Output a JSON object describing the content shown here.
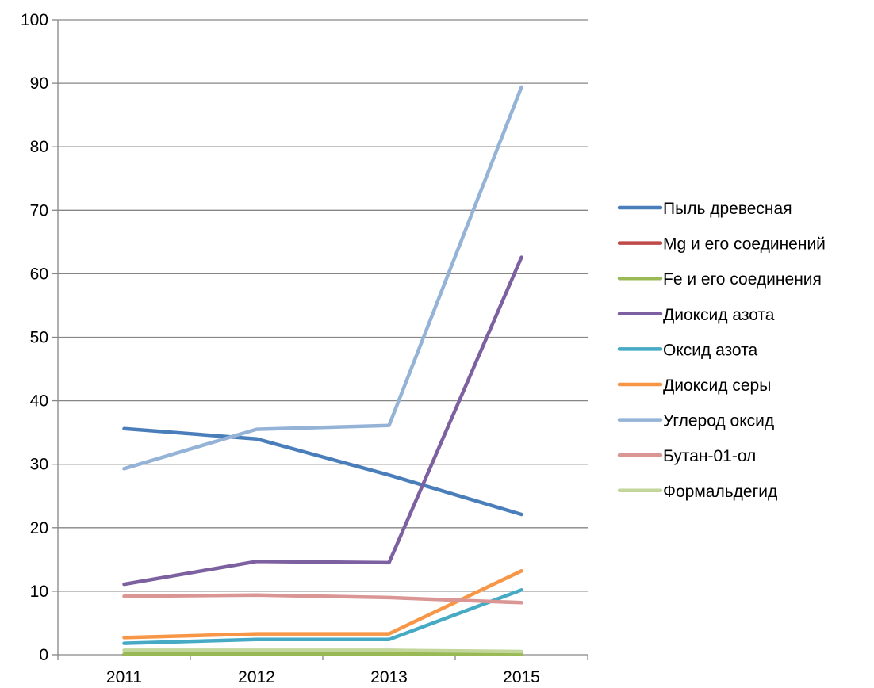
{
  "chart_data": {
    "type": "line",
    "categories": [
      "2011",
      "2012",
      "2013",
      "2015"
    ],
    "ylim": [
      0,
      100
    ],
    "yticks": [
      0,
      10,
      20,
      30,
      40,
      50,
      60,
      70,
      80,
      90,
      100
    ],
    "grid": true,
    "legend_position": "right",
    "series": [
      {
        "name": "Пыль древесная",
        "color": "#4a7ebb",
        "values": [
          35.6,
          34.0,
          28.3,
          22.1
        ]
      },
      {
        "name": "Mg и его соединений",
        "color": "#be4b48",
        "values": [
          0.05,
          0.05,
          0.05,
          0.05
        ]
      },
      {
        "name": "Fe и его соединения",
        "color": "#98b954",
        "values": [
          0.1,
          0.1,
          0.1,
          0.1
        ]
      },
      {
        "name": "Диоксид азота",
        "color": "#7d60a0",
        "values": [
          11.1,
          14.7,
          14.5,
          62.6
        ]
      },
      {
        "name": "Оксид азота",
        "color": "#46aac5",
        "values": [
          1.8,
          2.4,
          2.4,
          10.2
        ]
      },
      {
        "name": "Диоксид серы",
        "color": "#f79646",
        "values": [
          2.7,
          3.3,
          3.3,
          13.2
        ]
      },
      {
        "name": "Углерод оксид",
        "color": "#95b3d7",
        "values": [
          29.3,
          35.5,
          36.1,
          89.4
        ]
      },
      {
        "name": "Бутан-01-ол",
        "color": "#d99694",
        "values": [
          9.2,
          9.4,
          9.0,
          8.2
        ]
      },
      {
        "name": "Формальдегид",
        "color": "#c3d69b",
        "values": [
          0.7,
          0.7,
          0.7,
          0.5
        ]
      }
    ]
  }
}
